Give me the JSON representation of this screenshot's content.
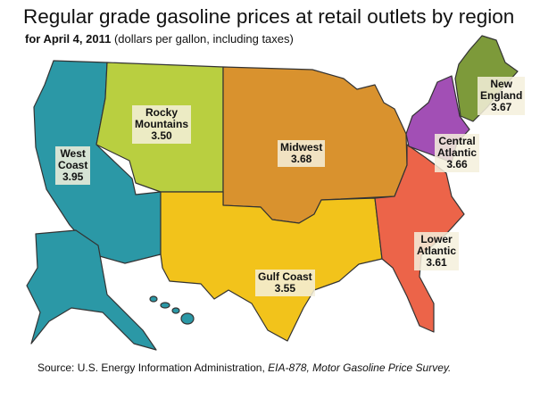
{
  "title": "Regular grade gasoline prices at retail outlets by region",
  "subtitle_bold": "for April 4, 2011",
  "subtitle_rest": " (dollars per gallon, including taxes)",
  "source_prefix": "Source: U.S. Energy Information Administration, ",
  "source_italic": "EIA-878, Motor Gasoline Price Survey.",
  "regions": [
    {
      "name": "West Coast",
      "line1": "West",
      "line2": "Coast",
      "price": "3.95",
      "color": "#2b98a6"
    },
    {
      "name": "Rocky Mountains",
      "line1": "Rocky",
      "line2": "Mountains",
      "price": "3.50",
      "color": "#b9cf40"
    },
    {
      "name": "Midwest",
      "line1": "Midwest",
      "line2": "",
      "price": "3.68",
      "color": "#d9922e"
    },
    {
      "name": "Gulf Coast",
      "line1": "Gulf Coast",
      "line2": "",
      "price": "3.55",
      "color": "#f2c31b"
    },
    {
      "name": "Lower Atlantic",
      "line1": "Lower",
      "line2": "Atlantic",
      "price": "3.61",
      "color": "#ec6449"
    },
    {
      "name": "Central Atlantic",
      "line1": "Central",
      "line2": "Atlantic",
      "price": "3.66",
      "color": "#a24fb5"
    },
    {
      "name": "New England",
      "line1": "New",
      "line2": "England",
      "price": "3.67",
      "color": "#7d9a3a"
    }
  ]
}
